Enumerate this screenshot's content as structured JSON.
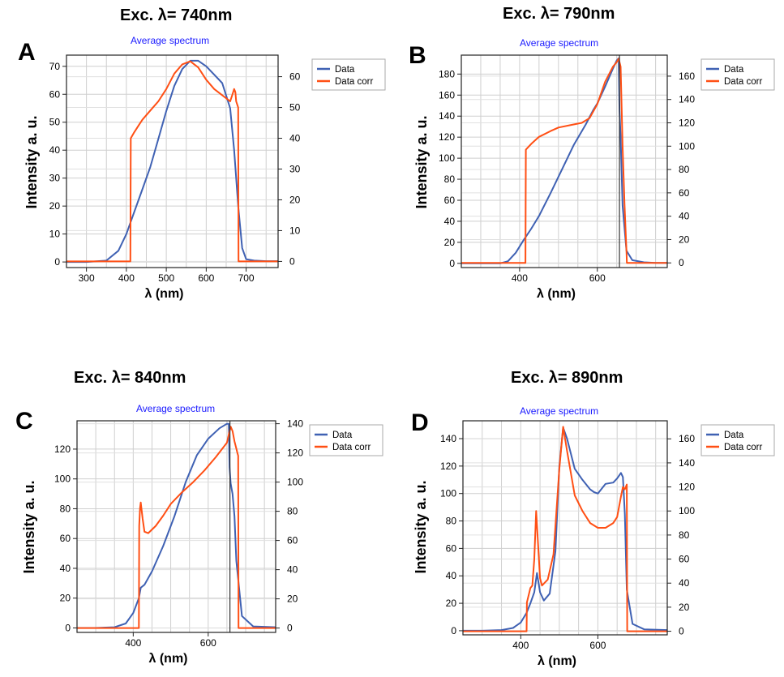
{
  "chart_data": [
    {
      "panel": "A",
      "title": "Exc. λ= 740nm",
      "subtitle": "Average spectrum",
      "type": "line",
      "xlabel": "λ (nm)",
      "ylabel": "Intensity a. u.",
      "xlim": [
        250,
        780
      ],
      "ylim": [
        -2,
        74
      ],
      "y2lim": [
        -2,
        67
      ],
      "xticks": [
        300,
        400,
        500,
        600,
        700
      ],
      "yticks": [
        0,
        10,
        20,
        30,
        40,
        50,
        60,
        70
      ],
      "y2ticks": [
        0,
        10,
        20,
        30,
        40,
        50,
        60
      ],
      "legend": [
        "Data",
        "Data corr"
      ],
      "legend_position": "right",
      "grid": true,
      "colors": {
        "data": "#3f61b3",
        "corr": "#ff4f14"
      },
      "series": [
        {
          "name": "Data",
          "axis": "left",
          "x": [
            250,
            300,
            350,
            380,
            400,
            420,
            440,
            460,
            480,
            500,
            520,
            540,
            560,
            580,
            600,
            620,
            640,
            660,
            670,
            680,
            690,
            700,
            720,
            750,
            780
          ],
          "y": [
            0,
            0,
            0.5,
            4,
            10,
            18,
            26,
            34,
            44,
            54,
            63,
            69,
            72,
            72,
            70,
            67,
            64,
            55,
            40,
            20,
            5,
            1,
            0.5,
            0.3,
            0.3
          ]
        },
        {
          "name": "Data corr",
          "axis": "right",
          "x": [
            250,
            405,
            410,
            411,
            420,
            430,
            440,
            460,
            480,
            500,
            520,
            540,
            560,
            580,
            600,
            620,
            640,
            660,
            665,
            670,
            673,
            675,
            680,
            681,
            685,
            780
          ],
          "y": [
            0,
            0,
            0,
            40,
            42,
            44,
            46,
            49,
            52,
            56,
            61,
            64,
            65,
            63,
            59,
            56,
            54,
            52,
            54,
            56,
            55,
            52,
            50,
            0,
            0,
            0
          ]
        }
      ]
    },
    {
      "panel": "B",
      "title": "Exc. λ= 790nm",
      "subtitle": "Average spectrum",
      "type": "line",
      "xlabel": "λ (nm)",
      "ylabel": "Intensity a. u.",
      "xlim": [
        250,
        780
      ],
      "ylim": [
        -4,
        198
      ],
      "y2lim": [
        -4,
        178
      ],
      "xticks": [
        400,
        600
      ],
      "yticks": [
        0,
        20,
        40,
        60,
        80,
        100,
        120,
        140,
        160,
        180
      ],
      "y2ticks": [
        0,
        20,
        40,
        60,
        80,
        100,
        120,
        140,
        160
      ],
      "legend": [
        "Data",
        "Data corr"
      ],
      "legend_position": "right",
      "grid": true,
      "vline": 657,
      "colors": {
        "data": "#3f61b3",
        "corr": "#ff4f14"
      },
      "series": [
        {
          "name": "Data",
          "axis": "left",
          "x": [
            250,
            300,
            350,
            370,
            390,
            410,
            430,
            450,
            480,
            510,
            540,
            570,
            590,
            600,
            620,
            640,
            650,
            655,
            657,
            660,
            665,
            675,
            690,
            720,
            750,
            780
          ],
          "y": [
            0,
            0,
            0,
            2,
            10,
            22,
            33,
            45,
            67,
            90,
            113,
            132,
            146,
            152,
            168,
            185,
            193,
            195,
            145,
            120,
            55,
            12,
            3,
            1,
            0.5,
            0.5
          ]
        },
        {
          "name": "Data corr",
          "axis": "right",
          "x": [
            250,
            410,
            415,
            416,
            430,
            450,
            480,
            500,
            530,
            560,
            580,
            600,
            620,
            640,
            650,
            655,
            660,
            665,
            670,
            675,
            676,
            780
          ],
          "y": [
            0,
            0,
            0,
            97,
            102,
            108,
            113,
            116,
            118,
            120,
            124,
            136,
            155,
            168,
            172,
            175,
            168,
            100,
            50,
            10,
            0,
            0
          ]
        }
      ]
    },
    {
      "panel": "C",
      "title": "Exc. λ= 840nm",
      "subtitle": "Average spectrum",
      "type": "line",
      "xlabel": "λ (nm)",
      "ylabel": "Intensity a. u.",
      "xlim": [
        250,
        780
      ],
      "ylim": [
        -3,
        139
      ],
      "y2lim": [
        -3,
        142
      ],
      "xticks": [
        400,
        600
      ],
      "yticks": [
        0,
        20,
        40,
        60,
        80,
        100,
        120
      ],
      "y2ticks": [
        0,
        20,
        40,
        60,
        80,
        100,
        120,
        140
      ],
      "legend": [
        "Data",
        "Data corr"
      ],
      "legend_position": "right",
      "grid": true,
      "vline": 658,
      "colors": {
        "data": "#3f61b3",
        "corr": "#ff4f14"
      },
      "series": [
        {
          "name": "Data",
          "axis": "left",
          "x": [
            250,
            300,
            350,
            380,
            400,
            415,
            420,
            430,
            450,
            480,
            510,
            540,
            570,
            600,
            630,
            650,
            655,
            657,
            660,
            665,
            670,
            675,
            690,
            720,
            780
          ],
          "y": [
            0,
            0,
            0.5,
            3,
            10,
            20,
            27,
            29,
            38,
            55,
            75,
            98,
            116,
            127,
            134,
            137,
            137,
            108,
            97,
            90,
            75,
            45,
            8,
            1,
            0.5
          ]
        },
        {
          "name": "Data corr",
          "axis": "right",
          "x": [
            250,
            412,
            415,
            416,
            418,
            420,
            425,
            430,
            440,
            460,
            480,
            500,
            530,
            560,
            590,
            620,
            650,
            660,
            665,
            670,
            675,
            678,
            680,
            681,
            780
          ],
          "y": [
            0,
            0,
            0,
            70,
            82,
            86,
            75,
            66,
            65,
            70,
            77,
            85,
            93,
            100,
            108,
            117,
            127,
            138,
            135,
            128,
            123,
            120,
            118,
            0,
            0
          ]
        }
      ]
    },
    {
      "panel": "D",
      "title": "Exc. λ= 890nm",
      "subtitle": "Average spectrum",
      "type": "line",
      "xlabel": "λ (nm)",
      "ylabel": "Intensity a. u.",
      "xlim": [
        250,
        780
      ],
      "ylim": [
        -3,
        153
      ],
      "y2lim": [
        -3,
        175
      ],
      "xticks": [
        400,
        600
      ],
      "yticks": [
        0,
        20,
        40,
        60,
        80,
        100,
        120,
        140
      ],
      "y2ticks": [
        0,
        20,
        40,
        60,
        80,
        100,
        120,
        140,
        160
      ],
      "legend": [
        "Data",
        "Data corr"
      ],
      "legend_position": "right",
      "grid": true,
      "colors": {
        "data": "#3f61b3",
        "corr": "#ff4f14"
      },
      "series": [
        {
          "name": "Data",
          "axis": "left",
          "x": [
            250,
            300,
            350,
            380,
            400,
            415,
            425,
            435,
            442,
            450,
            460,
            475,
            490,
            500,
            510,
            520,
            540,
            560,
            580,
            590,
            600,
            620,
            640,
            650,
            660,
            665,
            670,
            675,
            690,
            720,
            780
          ],
          "y": [
            0,
            0,
            0.5,
            2,
            6,
            13,
            20,
            28,
            42,
            28,
            22,
            27,
            58,
            120,
            148,
            140,
            118,
            110,
            103,
            101,
            100,
            107,
            108,
            111,
            115,
            112,
            85,
            30,
            5,
            1,
            0.5
          ]
        },
        {
          "name": "Data corr",
          "axis": "right",
          "x": [
            250,
            410,
            415,
            416,
            425,
            430,
            435,
            440,
            445,
            450,
            455,
            470,
            485,
            500,
            510,
            520,
            540,
            560,
            580,
            600,
            620,
            640,
            650,
            660,
            665,
            670,
            675,
            676,
            780
          ],
          "y": [
            0,
            0,
            0,
            24,
            36,
            38,
            60,
            100,
            72,
            44,
            38,
            43,
            64,
            135,
            170,
            150,
            113,
            100,
            90,
            86,
            86,
            90,
            95,
            112,
            120,
            118,
            122,
            0,
            0
          ]
        }
      ]
    }
  ]
}
